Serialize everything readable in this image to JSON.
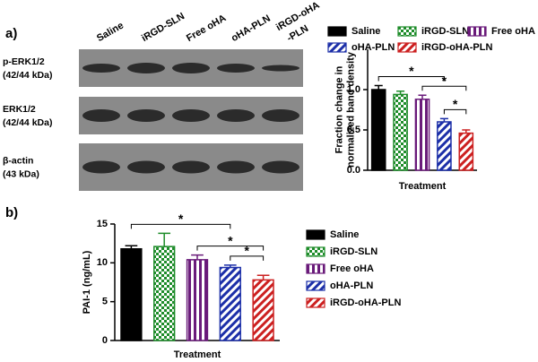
{
  "panel_labels": [
    "a)",
    "b)"
  ],
  "blot": {
    "lanes": [
      [
        "Saline"
      ],
      [
        "iRGD-SLN"
      ],
      [
        "Free oHA"
      ],
      [
        "oHA-PLN"
      ],
      [
        "iRGD-oHA",
        "-PLN"
      ]
    ],
    "rows": [
      [
        "p-ERK1/2",
        "(42/44 kDa)"
      ],
      [
        "ERK1/2",
        "(42/44 kDa)"
      ],
      [
        "β-actin",
        "(43 kDa)"
      ]
    ]
  },
  "chart_data": [
    {
      "type": "bar",
      "categories": [
        "Saline",
        "iRGD-SLN",
        "Free oHA",
        "oHA-PLN",
        "iRGD-oHA-PLN"
      ],
      "values": [
        1.0,
        0.94,
        0.88,
        0.6,
        0.46
      ],
      "errors": [
        0.05,
        0.04,
        0.05,
        0.04,
        0.04
      ],
      "colors": [
        "#000000",
        "#1e8c2a",
        "#6a1b7a",
        "#1c2fa8",
        "#cc2020"
      ],
      "patterns": [
        "solid",
        "checker",
        "vertical",
        "diagonal",
        "diagonal"
      ],
      "ylim": [
        0,
        1.5
      ],
      "yticks": [
        {
          "value": 0,
          "label": "0.0"
        },
        {
          "value": 0.5,
          "label": "0.5"
        },
        {
          "value": 1,
          "label": "1.0"
        }
      ],
      "ylabel": [
        "Fraction change in",
        "normalized band density"
      ],
      "xlabel": "Treatment",
      "significance": [
        {
          "between": [
            "Saline",
            "oHA-PLN"
          ],
          "label": "*"
        },
        {
          "between": [
            "Free oHA",
            "iRGD-oHA-PLN"
          ],
          "label": "*"
        },
        {
          "between": [
            "oHA-PLN",
            "iRGD-oHA-PLN"
          ],
          "label": "*"
        }
      ]
    },
    {
      "type": "bar",
      "categories": [
        "Saline",
        "iRGD-SLN",
        "Free oHA",
        "oHA-PLN",
        "iRGD-oHA-PLN"
      ],
      "values": [
        11.8,
        12.1,
        10.4,
        9.4,
        7.8
      ],
      "errors": [
        0.4,
        1.7,
        0.6,
        0.3,
        0.6
      ],
      "colors": [
        "#000000",
        "#1e8c2a",
        "#6a1b7a",
        "#1c2fa8",
        "#cc2020"
      ],
      "patterns": [
        "solid",
        "checker",
        "vertical",
        "diagonal",
        "diagonal"
      ],
      "ylim": [
        0,
        15
      ],
      "yticks": [
        0,
        5,
        10,
        15
      ],
      "ylabel": [
        "PAI-1 (ng/mL)"
      ],
      "xlabel": "Treatment",
      "significance": [
        {
          "between": [
            "Saline",
            "oHA-PLN"
          ],
          "label": "*"
        },
        {
          "between": [
            "Free oHA",
            "iRGD-oHA-PLN"
          ],
          "label": "*"
        },
        {
          "between": [
            "oHA-PLN",
            "iRGD-oHA-PLN"
          ],
          "label": "*"
        }
      ]
    }
  ]
}
